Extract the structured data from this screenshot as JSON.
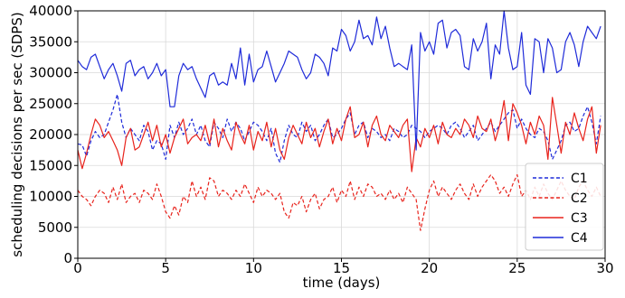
{
  "chart_data": {
    "type": "line",
    "title": "",
    "xlabel": "time (days)",
    "ylabel": "scheduling decisions per sec (SDPS)",
    "xlim": [
      0,
      30
    ],
    "ylim": [
      0,
      40000
    ],
    "xticks": [
      0,
      5,
      10,
      15,
      20,
      25,
      30
    ],
    "yticks": [
      0,
      5000,
      10000,
      15000,
      20000,
      25000,
      30000,
      35000,
      40000
    ],
    "grid": true,
    "legend_position": "lower-right",
    "series": [
      {
        "name": "C1",
        "color": "#1f2bd9",
        "style": "dashed",
        "x": [
          0,
          0.25,
          0.5,
          0.75,
          1,
          1.25,
          1.5,
          1.75,
          2,
          2.25,
          2.5,
          2.75,
          3,
          3.25,
          3.5,
          3.75,
          4,
          4.25,
          4.5,
          4.75,
          5,
          5.25,
          5.5,
          5.75,
          6,
          6.25,
          6.5,
          6.75,
          7,
          7.25,
          7.5,
          7.75,
          8,
          8.25,
          8.5,
          8.75,
          9,
          9.25,
          9.5,
          9.75,
          10,
          10.25,
          10.5,
          10.75,
          11,
          11.25,
          11.5,
          11.75,
          12,
          12.25,
          12.5,
          12.75,
          13,
          13.25,
          13.5,
          13.75,
          14,
          14.25,
          14.5,
          14.75,
          15,
          15.25,
          15.5,
          15.75,
          16,
          16.25,
          16.5,
          16.75,
          17,
          17.25,
          17.5,
          17.75,
          18,
          18.25,
          18.5,
          18.75,
          19,
          19.25,
          19.5,
          19.75,
          20,
          20.25,
          20.5,
          20.75,
          21,
          21.25,
          21.5,
          21.75,
          22,
          22.25,
          22.5,
          22.75,
          23,
          23.25,
          23.5,
          23.75,
          24,
          24.25,
          24.5,
          24.75,
          25,
          25.25,
          25.5,
          25.75,
          26,
          26.25,
          26.5,
          26.75,
          27,
          27.25,
          27.5,
          27.75,
          28,
          28.25,
          28.5,
          28.75,
          29,
          29.25,
          29.5,
          29.75
        ],
        "values": [
          18500,
          18300,
          16500,
          19000,
          20500,
          19500,
          20000,
          22000,
          24000,
          26500,
          22000,
          19500,
          21000,
          20000,
          19000,
          21500,
          20500,
          17500,
          19000,
          18500,
          16000,
          21500,
          19500,
          22000,
          20000,
          21000,
          22500,
          20000,
          21500,
          19000,
          18000,
          22000,
          21000,
          19500,
          22500,
          20500,
          22000,
          21000,
          19000,
          20500,
          22000,
          21500,
          20500,
          19000,
          21000,
          17000,
          15500,
          19000,
          21500,
          20000,
          19500,
          22000,
          20500,
          21500,
          19000,
          20000,
          21500,
          22500,
          19500,
          20000,
          21000,
          22500,
          23500,
          20000,
          21500,
          22000,
          19500,
          21000,
          20500,
          19500,
          20000,
          19000,
          21000,
          20500,
          19500,
          20000,
          21500,
          21000,
          20500,
          19500,
          20500,
          21000,
          21500,
          21000,
          20000,
          21500,
          22000,
          21000,
          19500,
          20500,
          21500,
          19000,
          20000,
          21000,
          22000,
          20500,
          21500,
          22500,
          23500,
          24000,
          21000,
          22500,
          21000,
          20000,
          19500,
          21000,
          20500,
          19000,
          16000,
          17500,
          19000,
          21500,
          22000,
          20500,
          21000,
          23000,
          24500,
          22000,
          18500,
          23000
        ]
      },
      {
        "name": "C2",
        "color": "#e8231c",
        "style": "dashed",
        "x": [
          0,
          0.25,
          0.5,
          0.75,
          1,
          1.25,
          1.5,
          1.75,
          2,
          2.25,
          2.5,
          2.75,
          3,
          3.25,
          3.5,
          3.75,
          4,
          4.25,
          4.5,
          4.75,
          5,
          5.25,
          5.5,
          5.75,
          6,
          6.25,
          6.5,
          6.75,
          7,
          7.25,
          7.5,
          7.75,
          8,
          8.25,
          8.5,
          8.75,
          9,
          9.25,
          9.5,
          9.75,
          10,
          10.25,
          10.5,
          10.75,
          11,
          11.25,
          11.5,
          11.75,
          12,
          12.25,
          12.5,
          12.75,
          13,
          13.25,
          13.5,
          13.75,
          14,
          14.25,
          14.5,
          14.75,
          15,
          15.25,
          15.5,
          15.75,
          16,
          16.25,
          16.5,
          16.75,
          17,
          17.25,
          17.5,
          17.75,
          18,
          18.25,
          18.5,
          18.75,
          19,
          19.25,
          19.5,
          19.75,
          20,
          20.25,
          20.5,
          20.75,
          21,
          21.25,
          21.5,
          21.75,
          22,
          22.25,
          22.5,
          22.75,
          23,
          23.25,
          23.5,
          23.75,
          24,
          24.25,
          24.5,
          24.75,
          25,
          25.25,
          25.5,
          25.75,
          26,
          26.25,
          26.5,
          26.75,
          27,
          27.25,
          27.5,
          27.75,
          28,
          28.25,
          28.5,
          28.75,
          29,
          29.25,
          29.5,
          29.75
        ],
        "values": [
          11000,
          10000,
          9500,
          8500,
          10000,
          11000,
          10500,
          9000,
          11500,
          9500,
          12000,
          9000,
          10000,
          10500,
          9000,
          11000,
          10500,
          9500,
          12000,
          10000,
          7500,
          6500,
          8500,
          7000,
          10000,
          9000,
          12500,
          10000,
          11500,
          9500,
          13000,
          12500,
          10000,
          11000,
          10500,
          9500,
          11000,
          10000,
          12000,
          10500,
          9000,
          11500,
          10000,
          11000,
          10500,
          9500,
          10500,
          7500,
          6500,
          9000,
          8500,
          10000,
          7500,
          9500,
          10500,
          8000,
          9500,
          10000,
          11500,
          9000,
          11000,
          10000,
          12500,
          9500,
          11500,
          10000,
          12000,
          11500,
          10000,
          10500,
          9500,
          11000,
          9500,
          10500,
          9000,
          11500,
          10500,
          9500,
          4500,
          8000,
          11000,
          12500,
          10000,
          11500,
          10500,
          9500,
          11000,
          12000,
          10500,
          9500,
          12000,
          10000,
          11500,
          12500,
          13500,
          12500,
          10500,
          11500,
          10000,
          12000,
          13500,
          10000,
          11000,
          9500,
          11500,
          10000,
          12000,
          10500,
          9500,
          11000,
          12500,
          11000,
          10000,
          9500,
          11500,
          12500,
          11000,
          10000,
          11500,
          10000
        ]
      },
      {
        "name": "C3",
        "color": "#e8231c",
        "style": "solid",
        "x": [
          0,
          0.25,
          0.5,
          0.75,
          1,
          1.25,
          1.5,
          1.75,
          2,
          2.25,
          2.5,
          2.75,
          3,
          3.25,
          3.5,
          3.75,
          4,
          4.25,
          4.5,
          4.75,
          5,
          5.25,
          5.5,
          5.75,
          6,
          6.25,
          6.5,
          6.75,
          7,
          7.25,
          7.5,
          7.75,
          8,
          8.25,
          8.5,
          8.75,
          9,
          9.25,
          9.5,
          9.75,
          10,
          10.25,
          10.5,
          10.75,
          11,
          11.25,
          11.5,
          11.75,
          12,
          12.25,
          12.5,
          12.75,
          13,
          13.25,
          13.5,
          13.75,
          14,
          14.25,
          14.5,
          14.75,
          15,
          15.25,
          15.5,
          15.75,
          16,
          16.25,
          16.5,
          16.75,
          17,
          17.25,
          17.5,
          17.75,
          18,
          18.25,
          18.5,
          18.75,
          19,
          19.25,
          19.5,
          19.75,
          20,
          20.25,
          20.5,
          20.75,
          21,
          21.25,
          21.5,
          21.75,
          22,
          22.25,
          22.5,
          22.75,
          23,
          23.25,
          23.5,
          23.75,
          24,
          24.25,
          24.5,
          24.75,
          25,
          25.25,
          25.5,
          25.75,
          26,
          26.25,
          26.5,
          26.75,
          27,
          27.25,
          27.5,
          27.75,
          28,
          28.25,
          28.5,
          28.75,
          29,
          29.25,
          29.5,
          29.75
        ],
        "values": [
          17500,
          14500,
          17000,
          20000,
          22500,
          21500,
          19500,
          20500,
          19000,
          17500,
          15000,
          19500,
          21000,
          17500,
          18000,
          20000,
          22000,
          19000,
          21500,
          18000,
          20000,
          17000,
          19500,
          21000,
          22500,
          18500,
          19500,
          20000,
          19000,
          21500,
          18500,
          22500,
          18000,
          21000,
          19000,
          17500,
          22000,
          20000,
          18500,
          21500,
          17500,
          20500,
          19000,
          22000,
          18000,
          21000,
          17500,
          16000,
          19500,
          21500,
          20000,
          18500,
          22000,
          19500,
          21000,
          18000,
          20500,
          22500,
          18500,
          21000,
          19000,
          22500,
          24500,
          19500,
          20000,
          22000,
          18000,
          21500,
          23000,
          20000,
          19000,
          21500,
          20500,
          19500,
          21500,
          22500,
          14000,
          19500,
          18000,
          21000,
          19500,
          21500,
          18500,
          22000,
          20000,
          19500,
          21000,
          20000,
          22500,
          21500,
          19500,
          23000,
          21000,
          20500,
          22500,
          19000,
          21500,
          25500,
          19000,
          25000,
          23500,
          21500,
          18500,
          22000,
          20000,
          23000,
          21500,
          16000,
          26000,
          21500,
          17000,
          22000,
          20000,
          23500,
          21000,
          19000,
          22500,
          24500,
          17000,
          21500
        ]
      },
      {
        "name": "C4",
        "color": "#1f2bd9",
        "style": "solid",
        "x": [
          0,
          0.25,
          0.5,
          0.75,
          1,
          1.25,
          1.5,
          1.75,
          2,
          2.25,
          2.5,
          2.75,
          3,
          3.25,
          3.5,
          3.75,
          4,
          4.25,
          4.5,
          4.75,
          5,
          5.25,
          5.5,
          5.75,
          6,
          6.25,
          6.5,
          6.75,
          7,
          7.25,
          7.5,
          7.75,
          8,
          8.25,
          8.5,
          8.75,
          9,
          9.25,
          9.5,
          9.75,
          10,
          10.25,
          10.5,
          10.75,
          11,
          11.25,
          11.5,
          11.75,
          12,
          12.25,
          12.5,
          12.75,
          13,
          13.25,
          13.5,
          13.75,
          14,
          14.25,
          14.5,
          14.75,
          15,
          15.25,
          15.5,
          15.75,
          16,
          16.25,
          16.5,
          16.75,
          17,
          17.25,
          17.5,
          17.75,
          18,
          18.25,
          18.5,
          18.75,
          19,
          19.25,
          19.5,
          19.75,
          20,
          20.25,
          20.5,
          20.75,
          21,
          21.25,
          21.5,
          21.75,
          22,
          22.25,
          22.5,
          22.75,
          23,
          23.25,
          23.5,
          23.75,
          24,
          24.25,
          24.5,
          24.75,
          25,
          25.25,
          25.5,
          25.75,
          26,
          26.25,
          26.5,
          26.75,
          27,
          27.25,
          27.5,
          27.75,
          28,
          28.25,
          28.5,
          28.75,
          29,
          29.25,
          29.5,
          29.75
        ],
        "values": [
          32000,
          31000,
          30500,
          32500,
          33000,
          31000,
          29000,
          30500,
          31500,
          29500,
          27000,
          31500,
          32000,
          29500,
          30500,
          31000,
          29000,
          30000,
          31500,
          29500,
          30500,
          24500,
          24500,
          29500,
          31500,
          30500,
          31000,
          29000,
          27500,
          26000,
          29500,
          30000,
          28000,
          28500,
          28000,
          31500,
          29000,
          34000,
          28000,
          33000,
          28500,
          30500,
          31000,
          33500,
          31000,
          28500,
          30000,
          31500,
          33500,
          33000,
          32500,
          30500,
          29000,
          30000,
          33000,
          32500,
          31500,
          29500,
          34000,
          33500,
          37000,
          36000,
          33500,
          35000,
          38500,
          35500,
          36000,
          34500,
          39000,
          35500,
          37500,
          34000,
          31000,
          31500,
          31000,
          30500,
          34500,
          17500,
          36500,
          33500,
          35000,
          33000,
          38000,
          38500,
          34000,
          36500,
          37000,
          36000,
          31000,
          30500,
          35500,
          33500,
          35000,
          38000,
          29000,
          34500,
          33000,
          40000,
          34000,
          30500,
          31000,
          36500,
          28000,
          26500,
          35500,
          35000,
          30000,
          35500,
          34000,
          30000,
          30500,
          35000,
          36500,
          34500,
          31000,
          35000,
          37500,
          36500,
          35500,
          37500
        ]
      }
    ]
  }
}
